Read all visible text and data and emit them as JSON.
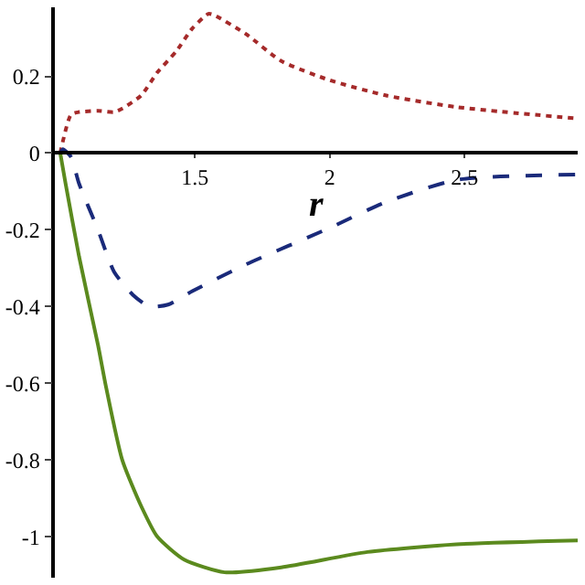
{
  "chart_data": {
    "type": "line",
    "xlabel": "r",
    "xlim": [
      0.98,
      2.92
    ],
    "ylim": [
      -1.107,
      0.38
    ],
    "xticks": [
      1.5,
      2,
      2.5
    ],
    "yticks": [
      0.2,
      0,
      -0.2,
      -0.4,
      -0.6,
      -0.8,
      -1
    ],
    "grid": false,
    "marker": "none",
    "series": [
      {
        "color": "#a52a2a",
        "line_style": "dotted",
        "x": [
          1,
          1.04,
          1.07,
          1.14,
          1.2,
          1.23,
          1.3,
          1.36,
          1.43,
          1.49,
          1.55,
          1.57,
          1.69,
          1.82,
          2.0,
          2.21,
          2.47,
          2.92
        ],
        "values": [
          0,
          0.1,
          0.107,
          0.11,
          0.107,
          0.116,
          0.15,
          0.21,
          0.265,
          0.325,
          0.363,
          0.36,
          0.31,
          0.24,
          0.19,
          0.15,
          0.12,
          0.09
        ]
      },
      {
        "color": "#1a2a7a",
        "line_style": "dashed",
        "x": [
          1,
          1.01,
          1.04,
          1.07,
          1.14,
          1.2,
          1.27,
          1.33,
          1.4,
          1.49,
          1.69,
          2.0,
          2.2,
          2.47,
          2.92
        ],
        "values": [
          0,
          0.01,
          -0.01,
          -0.08,
          -0.2,
          -0.31,
          -0.37,
          -0.4,
          -0.395,
          -0.36,
          -0.29,
          -0.195,
          -0.13,
          -0.07,
          -0.056
        ]
      },
      {
        "color": "#5b8a1e",
        "line_style": "solid",
        "x": [
          1,
          1.02,
          1.07,
          1.14,
          1.17,
          1.23,
          1.3,
          1.36,
          1.46,
          1.61,
          1.82,
          2.14,
          2.47,
          2.92
        ],
        "values": [
          0,
          -0.08,
          -0.27,
          -0.5,
          -0.61,
          -0.8,
          -0.92,
          -1.0,
          -1.06,
          -1.093,
          -1.08,
          -1.04,
          -1.02,
          -1.01
        ]
      }
    ]
  }
}
